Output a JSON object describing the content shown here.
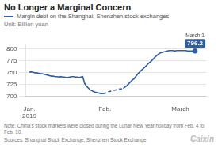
{
  "chart_data": {
    "type": "line",
    "title": "No Longer a Marginal Concern",
    "unit_label": "Unit: Billion yuan",
    "note": "Note: China's stock markets were closed during the Lunar New Year holiday from Feb. 4 to Feb. 10.",
    "source": "Sources: Shanghai Stock Exchange, Shenzhen Stock Exchange",
    "watermark": "Caixin",
    "annotation_label": "March 1",
    "annotation_value": 796.2,
    "xlim": [
      -2,
      96
    ],
    "xticks": [
      {
        "value": 0,
        "label": "Jan.\n2019"
      },
      {
        "value": 41,
        "label": "Feb."
      },
      {
        "value": 82,
        "label": "March"
      }
    ],
    "ylim": [
      700,
      810
    ],
    "yticks": [
      700,
      725,
      750,
      775,
      800
    ],
    "grid": true,
    "series": [
      {
        "name": "Margin debt on the Shanghai, Shenzhen stock exchanges",
        "color": "#2c5fa8",
        "line_style": "solid",
        "x": [
          0,
          1,
          2,
          3,
          4,
          5,
          6,
          7,
          8,
          9,
          10,
          11,
          12,
          13,
          14,
          15,
          16,
          17,
          18,
          19,
          20,
          21,
          22,
          23,
          24,
          25,
          26,
          27,
          28,
          29,
          30,
          31,
          32,
          33,
          34,
          35,
          36,
          37,
          38,
          39,
          40
        ],
        "values": [
          751,
          752,
          751,
          750,
          750,
          749,
          748,
          748,
          747,
          746,
          745,
          744,
          743,
          743,
          742,
          742,
          741,
          742,
          741,
          741,
          740,
          740,
          741,
          742,
          742,
          741,
          741,
          740,
          741,
          742,
          728,
          722,
          718,
          714,
          712,
          710,
          709,
          708,
          707,
          706,
          706
        ]
      },
      {
        "color": "#2c5fa8",
        "line_style": "dashed",
        "x": [
          40,
          41,
          42,
          43,
          44,
          45,
          46,
          47,
          48,
          49,
          50,
          51
        ],
        "values": [
          706,
          707,
          708,
          710,
          711,
          712,
          713,
          714,
          715,
          716,
          716,
          717
        ]
      },
      {
        "color": "#2c5fa8",
        "line_style": "solid",
        "marker": "last",
        "x": [
          51,
          52,
          53,
          54,
          55,
          56,
          57,
          58,
          59,
          60,
          61,
          62,
          63,
          64,
          65,
          66,
          67,
          68,
          69,
          70,
          71,
          72,
          73,
          74,
          75,
          76,
          77,
          78,
          79,
          80,
          81,
          82,
          83,
          84,
          85,
          86,
          87,
          88,
          89,
          90
        ],
        "values": [
          717,
          720,
          723,
          727,
          731,
          735,
          738,
          743,
          748,
          752,
          756,
          759,
          763,
          767,
          771,
          774,
          778,
          782,
          786,
          789,
          792,
          793,
          794,
          795,
          796,
          797,
          797,
          797,
          796,
          797,
          797,
          797,
          797,
          797,
          797,
          796,
          796,
          796,
          796,
          796.2
        ]
      }
    ]
  }
}
